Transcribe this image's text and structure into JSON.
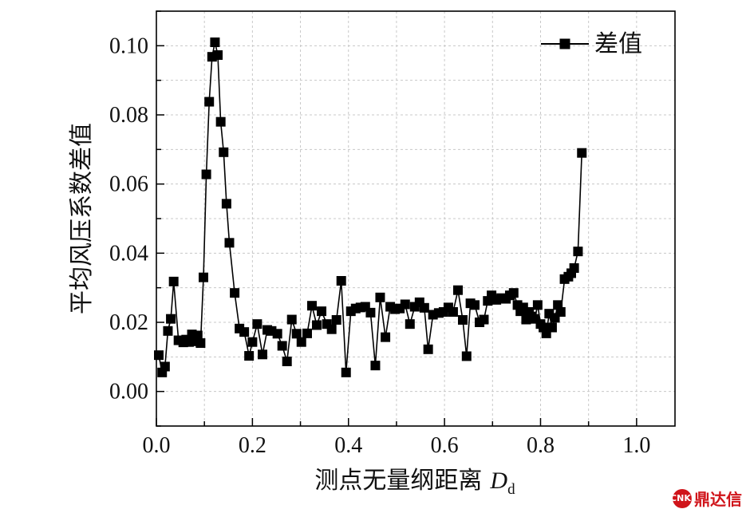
{
  "chart_data": {
    "type": "line",
    "markers": "square",
    "color": "#000000",
    "grid": true,
    "legend_position": "top-right",
    "xlabel": "测点无量纲距离",
    "xlabel_symbol": "D",
    "xlabel_subscript": "d",
    "ylabel": "平均风压系数差值",
    "xlim": [
      0.0,
      1.08
    ],
    "ylim": [
      -0.01,
      0.11
    ],
    "x_ticks": [
      "0.0",
      "0.2",
      "0.4",
      "0.6",
      "0.8",
      "1.0"
    ],
    "y_ticks": [
      "0.00",
      "0.02",
      "0.04",
      "0.06",
      "0.08",
      "0.10"
    ],
    "series": [
      {
        "name": "差值",
        "points": [
          [
            0.005,
            0.0105
          ],
          [
            0.012,
            0.0055
          ],
          [
            0.018,
            0.0072
          ],
          [
            0.024,
            0.0175
          ],
          [
            0.03,
            0.021
          ],
          [
            0.036,
            0.0318
          ],
          [
            0.046,
            0.0148
          ],
          [
            0.056,
            0.0142
          ],
          [
            0.062,
            0.015
          ],
          [
            0.068,
            0.0143
          ],
          [
            0.074,
            0.0165
          ],
          [
            0.08,
            0.0145
          ],
          [
            0.086,
            0.0162
          ],
          [
            0.092,
            0.014
          ],
          [
            0.098,
            0.033
          ],
          [
            0.104,
            0.0628
          ],
          [
            0.11,
            0.0838
          ],
          [
            0.116,
            0.0968
          ],
          [
            0.122,
            0.101
          ],
          [
            0.128,
            0.0973
          ],
          [
            0.134,
            0.078
          ],
          [
            0.14,
            0.0692
          ],
          [
            0.146,
            0.0543
          ],
          [
            0.152,
            0.043
          ],
          [
            0.163,
            0.0285
          ],
          [
            0.173,
            0.0182
          ],
          [
            0.183,
            0.0172
          ],
          [
            0.193,
            0.0103
          ],
          [
            0.2,
            0.0143
          ],
          [
            0.21,
            0.0195
          ],
          [
            0.221,
            0.0107
          ],
          [
            0.231,
            0.0178
          ],
          [
            0.24,
            0.0175
          ],
          [
            0.252,
            0.0167
          ],
          [
            0.262,
            0.0132
          ],
          [
            0.272,
            0.0087
          ],
          [
            0.282,
            0.0208
          ],
          [
            0.292,
            0.0167
          ],
          [
            0.302,
            0.0143
          ],
          [
            0.314,
            0.0168
          ],
          [
            0.324,
            0.0248
          ],
          [
            0.334,
            0.0192
          ],
          [
            0.344,
            0.0232
          ],
          [
            0.355,
            0.0195
          ],
          [
            0.365,
            0.018
          ],
          [
            0.375,
            0.0207
          ],
          [
            0.385,
            0.032
          ],
          [
            0.395,
            0.0055
          ],
          [
            0.405,
            0.0232
          ],
          [
            0.415,
            0.024
          ],
          [
            0.425,
            0.0243
          ],
          [
            0.435,
            0.0245
          ],
          [
            0.446,
            0.0228
          ],
          [
            0.456,
            0.0075
          ],
          [
            0.466,
            0.0272
          ],
          [
            0.477,
            0.0157
          ],
          [
            0.487,
            0.0245
          ],
          [
            0.497,
            0.0238
          ],
          [
            0.507,
            0.024
          ],
          [
            0.518,
            0.0252
          ],
          [
            0.528,
            0.0195
          ],
          [
            0.538,
            0.0245
          ],
          [
            0.548,
            0.0258
          ],
          [
            0.558,
            0.0242
          ],
          [
            0.566,
            0.0122
          ],
          [
            0.576,
            0.0222
          ],
          [
            0.588,
            0.0227
          ],
          [
            0.598,
            0.023
          ],
          [
            0.608,
            0.0243
          ],
          [
            0.618,
            0.023
          ],
          [
            0.628,
            0.0293
          ],
          [
            0.638,
            0.0207
          ],
          [
            0.646,
            0.0102
          ],
          [
            0.654,
            0.0255
          ],
          [
            0.663,
            0.025
          ],
          [
            0.673,
            0.02
          ],
          [
            0.682,
            0.0208
          ],
          [
            0.69,
            0.0262
          ],
          [
            0.698,
            0.0278
          ],
          [
            0.708,
            0.0265
          ],
          [
            0.718,
            0.027
          ],
          [
            0.728,
            0.0268
          ],
          [
            0.736,
            0.0278
          ],
          [
            0.744,
            0.0285
          ],
          [
            0.752,
            0.025
          ],
          [
            0.758,
            0.0232
          ],
          [
            0.764,
            0.0243
          ],
          [
            0.77,
            0.0208
          ],
          [
            0.776,
            0.023
          ],
          [
            0.782,
            0.0217
          ],
          [
            0.788,
            0.021
          ],
          [
            0.794,
            0.025
          ],
          [
            0.8,
            0.0195
          ],
          [
            0.806,
            0.0185
          ],
          [
            0.812,
            0.0168
          ],
          [
            0.818,
            0.0225
          ],
          [
            0.824,
            0.0185
          ],
          [
            0.83,
            0.0213
          ],
          [
            0.836,
            0.025
          ],
          [
            0.842,
            0.023
          ],
          [
            0.85,
            0.0325
          ],
          [
            0.858,
            0.0332
          ],
          [
            0.864,
            0.0342
          ],
          [
            0.87,
            0.0357
          ],
          [
            0.878,
            0.0405
          ],
          [
            0.886,
            0.069
          ]
        ]
      }
    ]
  },
  "watermark": {
    "logo": "CNKI",
    "text": "鼎达信"
  }
}
